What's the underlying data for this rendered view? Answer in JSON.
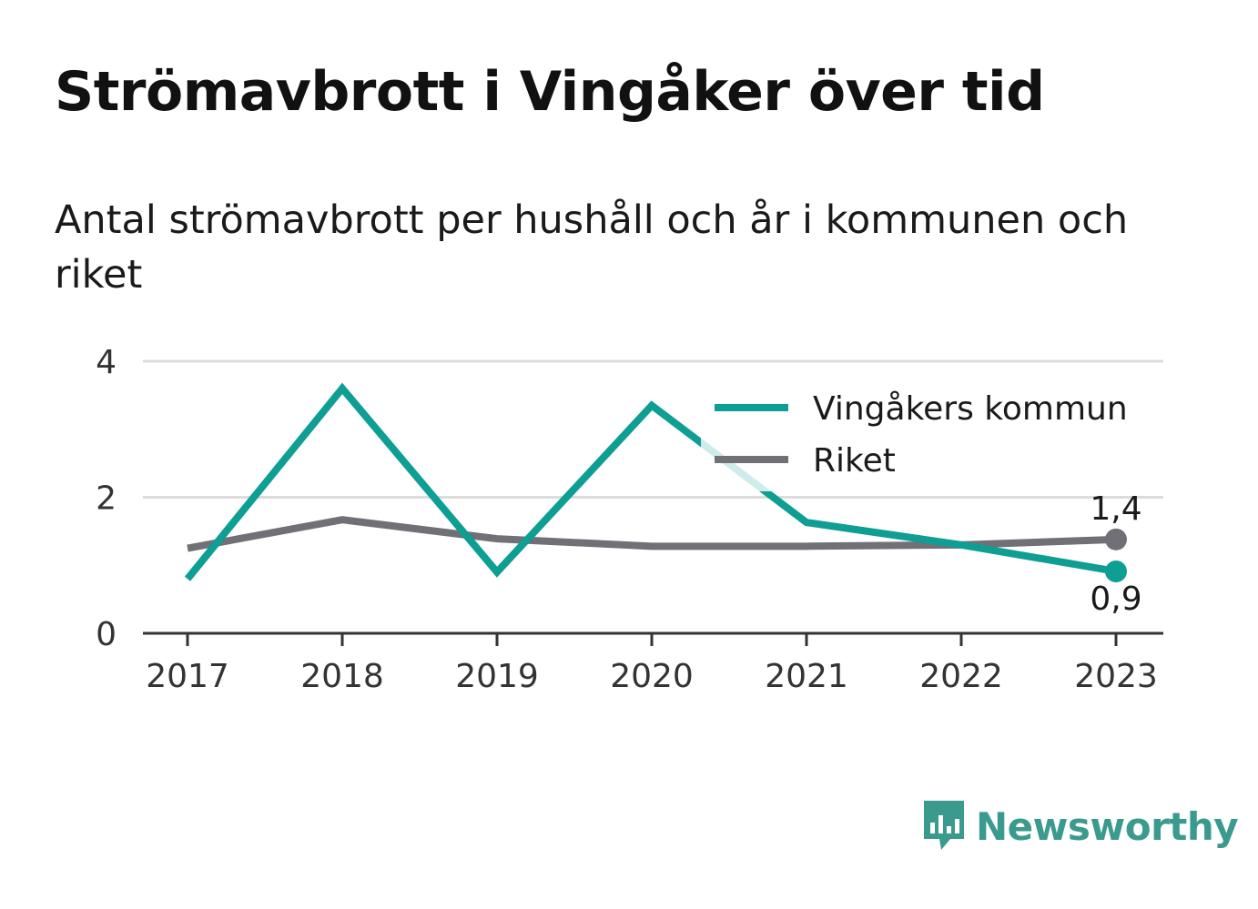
{
  "title": "Strömavbrott i Vingåker över tid",
  "subtitle": "Antal strömavbrott per hushåll och år i kommunen och riket",
  "brand": {
    "name": "Newsworthy",
    "color": "#3a9a8e",
    "icon": "newsworthy-chart-bubble-icon"
  },
  "colors": {
    "kommun": "#0e9e93",
    "riket": "#707076",
    "grid": "#dcdcdc",
    "axis": "#333333"
  },
  "chart_data": {
    "type": "line",
    "x": [
      "2017",
      "2018",
      "2019",
      "2020",
      "2021",
      "2022",
      "2023"
    ],
    "y_ticks": [
      "0",
      "2",
      "4"
    ],
    "ylim": [
      0,
      4
    ],
    "grid": true,
    "legend_position": "top-right",
    "series": [
      {
        "name": "Vingåkers kommun",
        "values": [
          0.8,
          3.6,
          0.9,
          3.35,
          1.63,
          1.3,
          0.91
        ],
        "end_label": "0,9"
      },
      {
        "name": "Riket",
        "values": [
          1.25,
          1.67,
          1.39,
          1.28,
          1.28,
          1.3,
          1.38
        ],
        "end_label": "1,4"
      }
    ]
  }
}
